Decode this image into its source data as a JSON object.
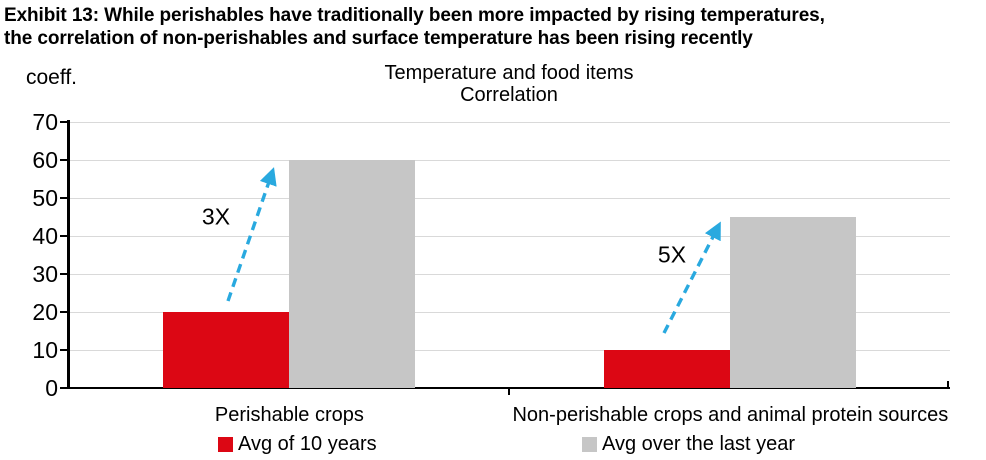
{
  "exhibit": {
    "title_lines": [
      "Exhibit 13: While perishables have traditionally been more impacted by rising temperatures,",
      "the correlation of non-perishables and surface temperature has been rising recently"
    ]
  },
  "chart_data": {
    "type": "bar",
    "title_lines": [
      "Temperature and food items",
      "Correlation"
    ],
    "unit_label": "coeff.",
    "categories": [
      "Perishable crops",
      "Non-perishable crops and animal protein sources"
    ],
    "series": [
      {
        "name": "Avg of 10 years",
        "color": "#dc0714",
        "values": [
          20,
          10
        ]
      },
      {
        "name": "Avg over the last year",
        "color": "#c6c6c6",
        "values": [
          60,
          45
        ]
      }
    ],
    "annotations": [
      {
        "text": "3X",
        "group": 0
      },
      {
        "text": "5X",
        "group": 1
      }
    ],
    "ylim": [
      0,
      70
    ],
    "yticks": [
      0,
      10,
      20,
      30,
      40,
      50,
      60,
      70
    ],
    "grid": true,
    "legend_position": "bottom",
    "colors": {
      "arrow": "#29a9df",
      "gridline": "#d9d9d9",
      "axis": "#000000"
    }
  }
}
